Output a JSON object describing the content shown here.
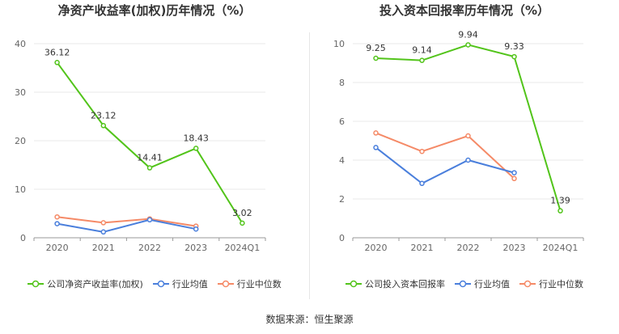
{
  "source_label": "数据来源：恒生聚源",
  "chart_data": [
    {
      "type": "line",
      "title": "净资产收益率(加权)历年情况（%）",
      "categories": [
        "2020",
        "2021",
        "2022",
        "2023",
        "2024Q1"
      ],
      "ylim": [
        0,
        40
      ],
      "yticks": [
        0,
        10,
        20,
        30,
        40
      ],
      "grid": true,
      "legend_position": "bottom",
      "series": [
        {
          "name": "公司净资产收益率(加权)",
          "color": "#52c41a",
          "values": [
            36.12,
            23.12,
            14.41,
            18.43,
            3.02
          ],
          "labels": [
            "36.12",
            "23.12",
            "14.41",
            "18.43",
            "3.02"
          ]
        },
        {
          "name": "行业均值",
          "color": "#4a7fdc",
          "values": [
            2.9,
            1.2,
            3.7,
            1.8,
            null
          ]
        },
        {
          "name": "行业中位数",
          "color": "#f58a67",
          "values": [
            4.3,
            3.1,
            3.9,
            2.4,
            null
          ]
        }
      ]
    },
    {
      "type": "line",
      "title": "投入资本回报率历年情况（%）",
      "categories": [
        "2020",
        "2021",
        "2022",
        "2023",
        "2024Q1"
      ],
      "ylim": [
        0,
        10
      ],
      "yticks": [
        0,
        2,
        4,
        6,
        8,
        10
      ],
      "grid": true,
      "legend_position": "bottom",
      "series": [
        {
          "name": "公司投入资本回报率",
          "color": "#52c41a",
          "values": [
            9.25,
            9.14,
            9.94,
            9.33,
            1.39
          ],
          "labels": [
            "9.25",
            "9.14",
            "9.94",
            "9.33",
            "1.39"
          ]
        },
        {
          "name": "行业均值",
          "color": "#4a7fdc",
          "values": [
            4.65,
            2.8,
            4.0,
            3.35,
            null
          ]
        },
        {
          "name": "行业中位数",
          "color": "#f58a67",
          "values": [
            5.4,
            4.45,
            5.25,
            3.05,
            null
          ]
        }
      ]
    }
  ]
}
